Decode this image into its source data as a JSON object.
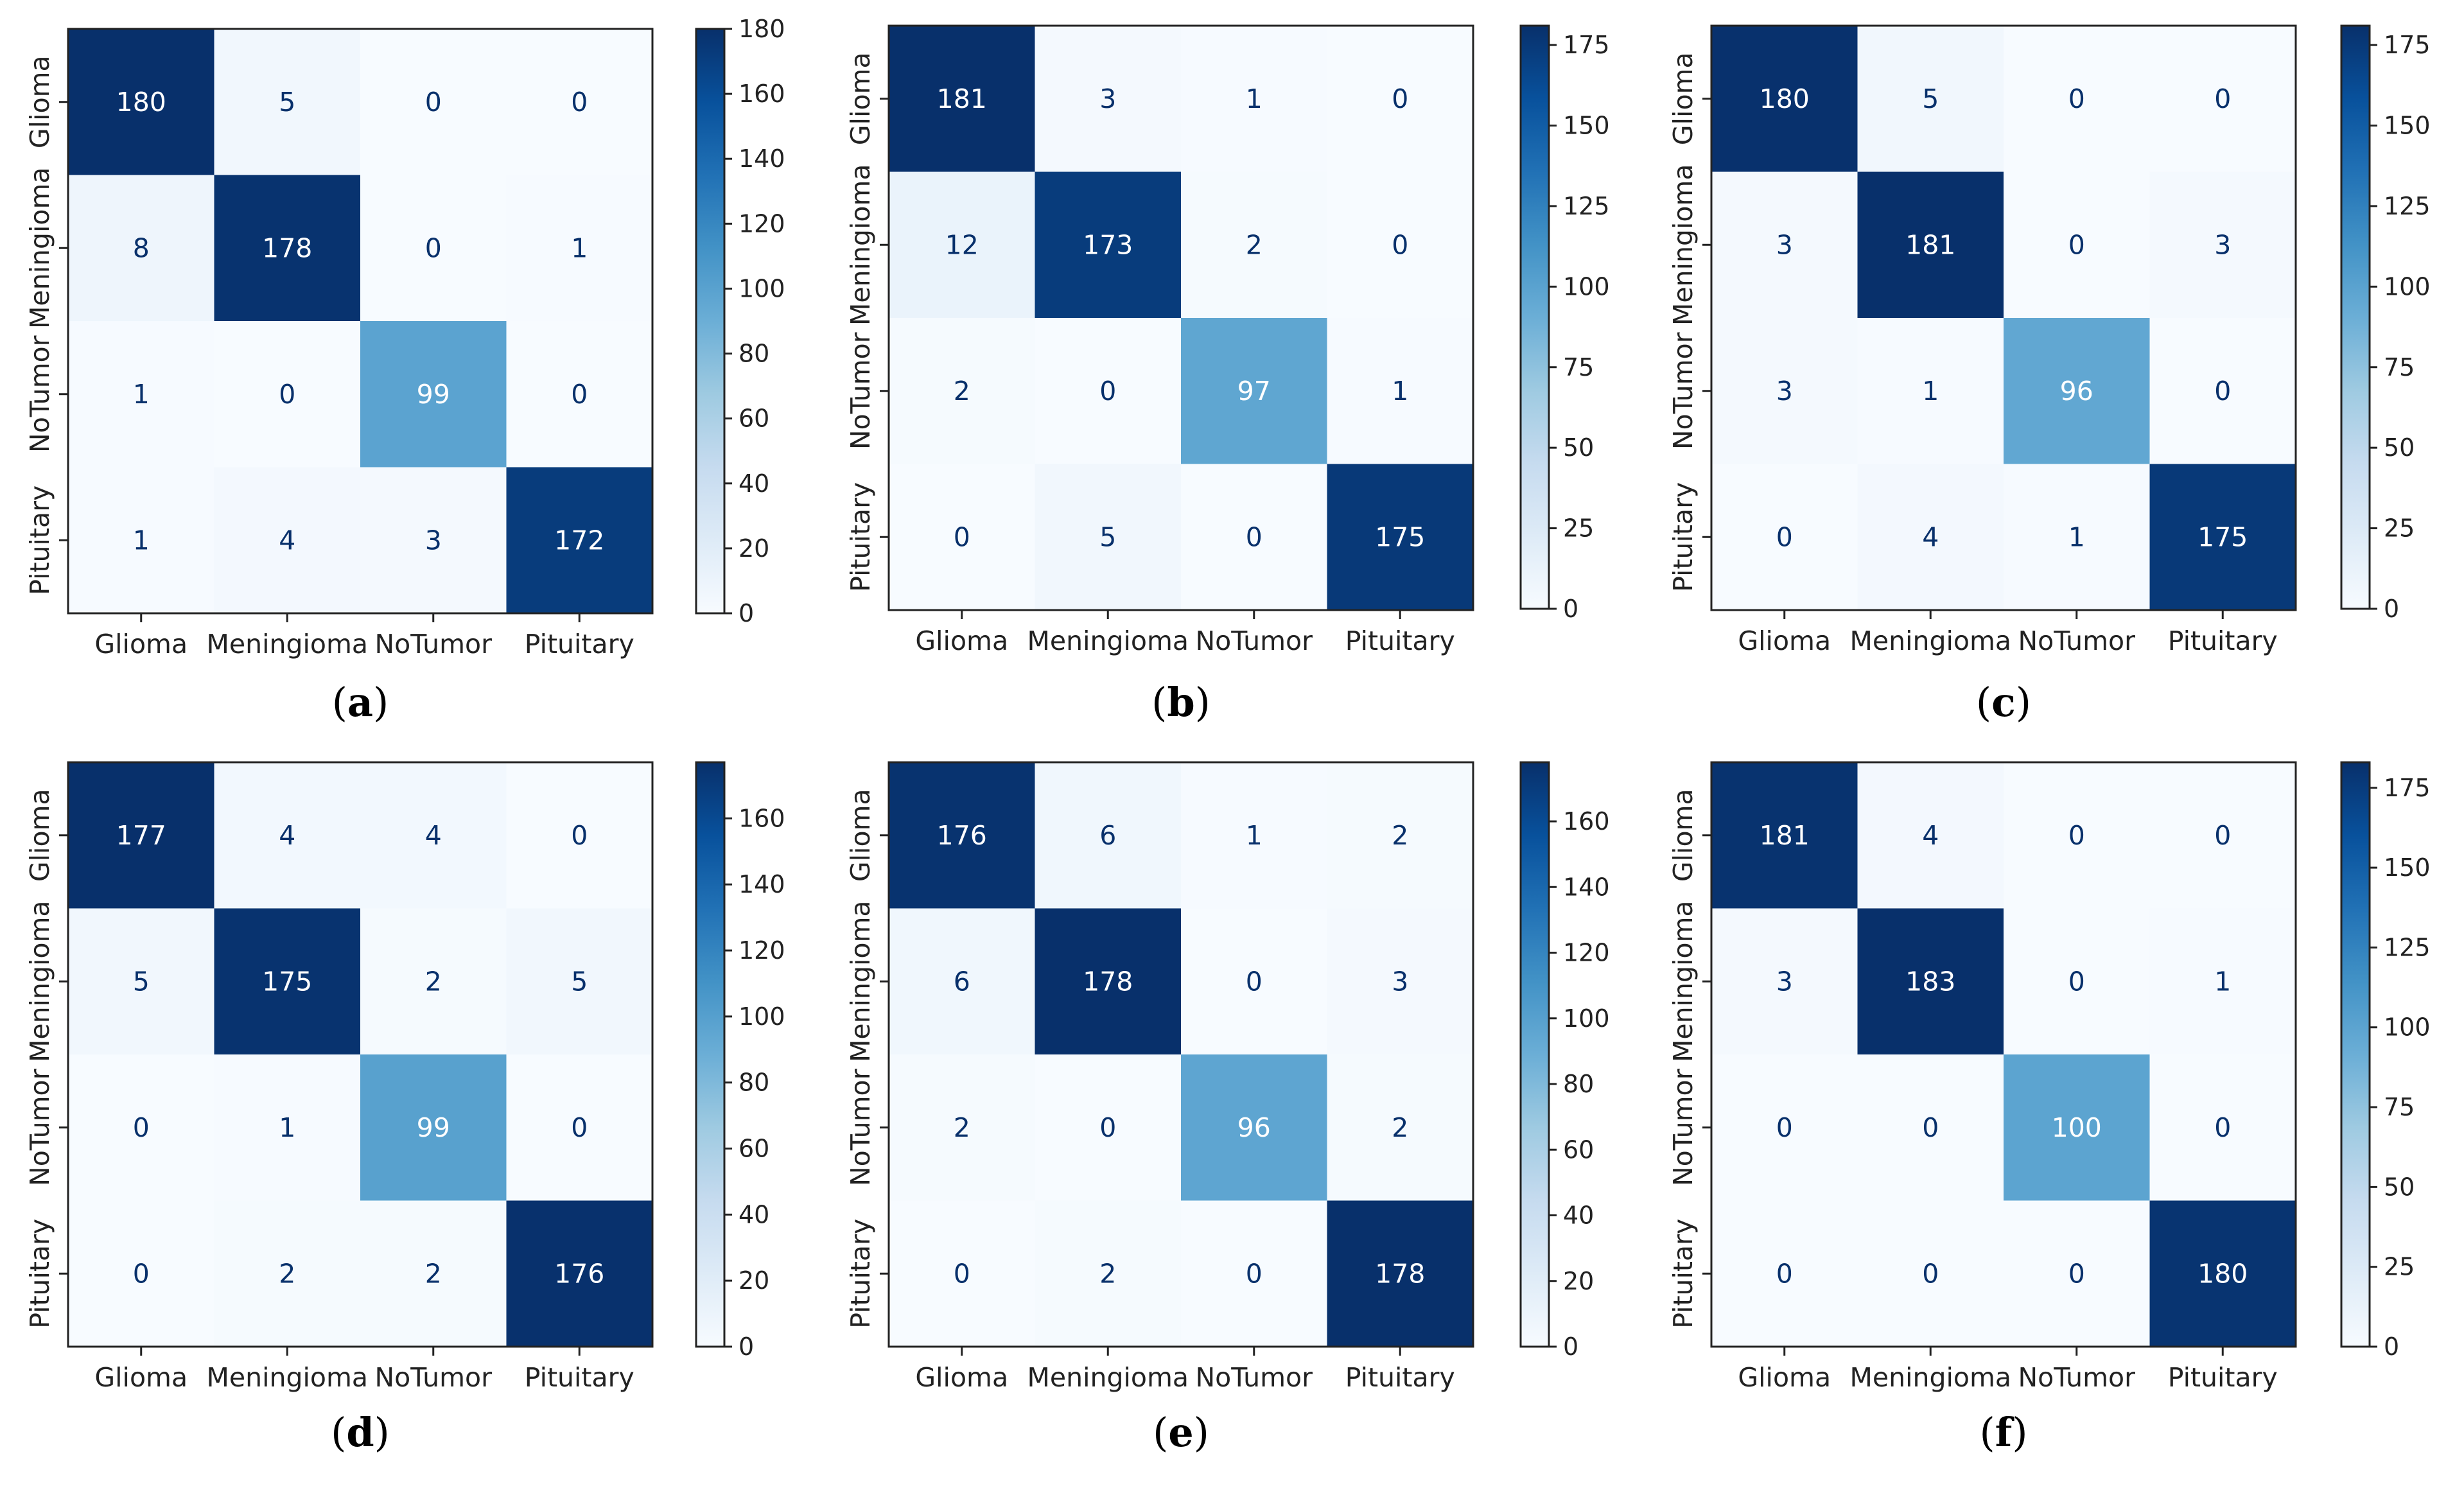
{
  "colormap": {
    "name": "Blues",
    "stops": [
      "#f7fbff",
      "#deebf7",
      "#c6dbef",
      "#9ecae1",
      "#6baed6",
      "#4292c6",
      "#2171b5",
      "#08519c",
      "#08306b"
    ]
  },
  "colors": {
    "text_light": "#ffffff",
    "text_dark": "#08306b",
    "axis": "#222222",
    "caption": "#000000"
  },
  "chart_data": [
    {
      "type": "heatmap",
      "panel": "a",
      "caption": "(a)",
      "caption_letter": "a",
      "x_categories": [
        "Glioma",
        "Meningioma",
        "NoTumor",
        "Pituitary"
      ],
      "y_categories": [
        "Glioma",
        "Meningioma",
        "NoTumor",
        "Pituitary"
      ],
      "matrix": [
        [
          180,
          5,
          0,
          0
        ],
        [
          8,
          178,
          0,
          1
        ],
        [
          1,
          0,
          99,
          0
        ],
        [
          1,
          4,
          3,
          172
        ]
      ],
      "colorbar": {
        "range": [
          0,
          180
        ],
        "ticks": [
          0,
          20,
          40,
          60,
          80,
          100,
          120,
          140,
          160,
          180
        ]
      }
    },
    {
      "type": "heatmap",
      "panel": "b",
      "caption": "(b)",
      "caption_letter": "b",
      "x_categories": [
        "Glioma",
        "Meningioma",
        "NoTumor",
        "Pituitary"
      ],
      "y_categories": [
        "Glioma",
        "Meningioma",
        "NoTumor",
        "Pituitary"
      ],
      "matrix": [
        [
          181,
          3,
          1,
          0
        ],
        [
          12,
          173,
          2,
          0
        ],
        [
          2,
          0,
          97,
          1
        ],
        [
          0,
          5,
          0,
          175
        ]
      ],
      "colorbar": {
        "range": [
          0,
          181
        ],
        "ticks": [
          0,
          25,
          50,
          75,
          100,
          125,
          150,
          175
        ]
      }
    },
    {
      "type": "heatmap",
      "panel": "c",
      "caption": "(c)",
      "caption_letter": "c",
      "x_categories": [
        "Glioma",
        "Meningioma",
        "NoTumor",
        "Pituitary"
      ],
      "y_categories": [
        "Glioma",
        "Meningioma",
        "NoTumor",
        "Pituitary"
      ],
      "matrix": [
        [
          180,
          5,
          0,
          0
        ],
        [
          3,
          181,
          0,
          3
        ],
        [
          3,
          1,
          96,
          0
        ],
        [
          0,
          4,
          1,
          175
        ]
      ],
      "colorbar": {
        "range": [
          0,
          181
        ],
        "ticks": [
          0,
          25,
          50,
          75,
          100,
          125,
          150,
          175
        ]
      }
    },
    {
      "type": "heatmap",
      "panel": "d",
      "caption": "(d)",
      "caption_letter": "d",
      "x_categories": [
        "Glioma",
        "Meningioma",
        "NoTumor",
        "Pituitary"
      ],
      "y_categories": [
        "Glioma",
        "Meningioma",
        "NoTumor",
        "Pituitary"
      ],
      "matrix": [
        [
          177,
          4,
          4,
          0
        ],
        [
          5,
          175,
          2,
          5
        ],
        [
          0,
          1,
          99,
          0
        ],
        [
          0,
          2,
          2,
          176
        ]
      ],
      "colorbar": {
        "range": [
          0,
          177
        ],
        "ticks": [
          0,
          20,
          40,
          60,
          80,
          100,
          120,
          140,
          160
        ]
      }
    },
    {
      "type": "heatmap",
      "panel": "e",
      "caption": "(e)",
      "caption_letter": "e",
      "x_categories": [
        "Glioma",
        "Meningioma",
        "NoTumor",
        "Pituitary"
      ],
      "y_categories": [
        "Glioma",
        "Meningioma",
        "NoTumor",
        "Pituitary"
      ],
      "matrix": [
        [
          176,
          6,
          1,
          2
        ],
        [
          6,
          178,
          0,
          3
        ],
        [
          2,
          0,
          96,
          2
        ],
        [
          0,
          2,
          0,
          178
        ]
      ],
      "colorbar": {
        "range": [
          0,
          178
        ],
        "ticks": [
          0,
          20,
          40,
          60,
          80,
          100,
          120,
          140,
          160
        ]
      }
    },
    {
      "type": "heatmap",
      "panel": "f",
      "caption": "(f)",
      "caption_letter": "f",
      "x_categories": [
        "Glioma",
        "Meningioma",
        "NoTumor",
        "Pituitary"
      ],
      "y_categories": [
        "Glioma",
        "Meningioma",
        "NoTumor",
        "Pituitary"
      ],
      "matrix": [
        [
          181,
          4,
          0,
          0
        ],
        [
          3,
          183,
          0,
          1
        ],
        [
          0,
          0,
          100,
          0
        ],
        [
          0,
          0,
          0,
          180
        ]
      ],
      "colorbar": {
        "range": [
          0,
          183
        ],
        "ticks": [
          0,
          25,
          50,
          75,
          100,
          125,
          150,
          175
        ]
      }
    }
  ]
}
